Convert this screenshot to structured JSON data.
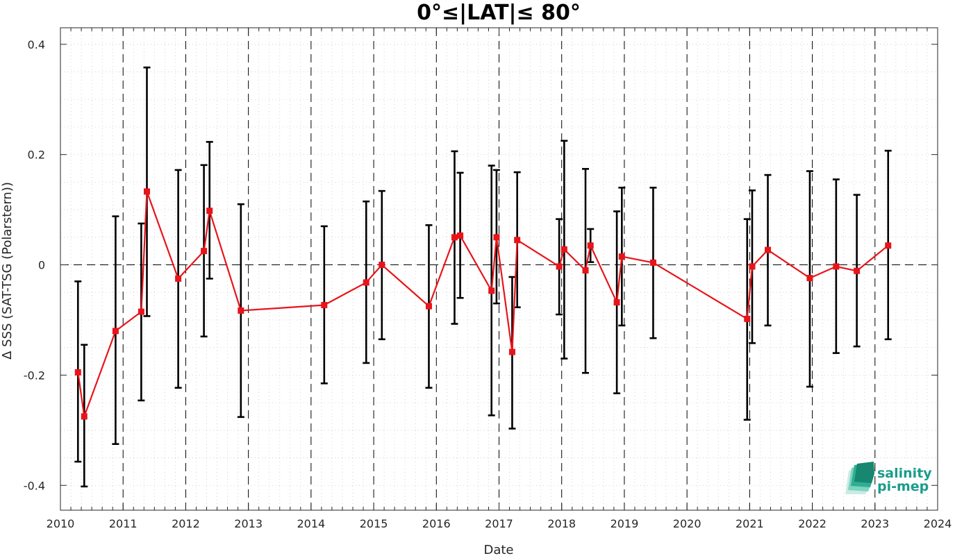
{
  "chart_data": {
    "type": "line",
    "title": "0°≤|LAT|≤ 80°",
    "xlabel": "Date",
    "ylabel": "Δ SSS (SAT-TSG (Polarstern))",
    "xlim": [
      2010,
      2024
    ],
    "ylim": [
      -0.445,
      0.43
    ],
    "x_ticks": [
      2010,
      2011,
      2012,
      2013,
      2014,
      2015,
      2016,
      2017,
      2018,
      2019,
      2020,
      2021,
      2022,
      2023,
      2024
    ],
    "x_tick_labels": [
      "2010",
      "2011",
      "2012",
      "2013",
      "2014",
      "2015",
      "2016",
      "2017",
      "2018",
      "2019",
      "2020",
      "2021",
      "2022",
      "2023",
      "2024"
    ],
    "y_ticks": [
      -0.4,
      -0.2,
      0,
      0.2,
      0.4
    ],
    "y_tick_labels": [
      "-0.4",
      "-0.2",
      "0",
      "0.2",
      "0.4"
    ],
    "grid": "dotted minor grid, dashed vertical lines at each year, dashed horizontal line at 0",
    "series": [
      {
        "color": "#e8141a",
        "x": [
          2010.28,
          2010.38,
          2010.88,
          2011.29,
          2011.38,
          2011.88,
          2012.29,
          2012.38,
          2012.88,
          2014.21,
          2014.88,
          2015.13,
          2015.88,
          2016.29,
          2016.38,
          2016.88,
          2016.96,
          2017.21,
          2017.29,
          2017.96,
          2018.04,
          2018.38,
          2018.46,
          2018.88,
          2018.96,
          2019.46,
          2020.96,
          2021.04,
          2021.29,
          2021.96,
          2022.38,
          2022.71,
          2023.21
        ],
        "y": [
          -0.195,
          -0.275,
          -0.12,
          -0.085,
          0.133,
          -0.025,
          0.025,
          0.098,
          -0.083,
          -0.073,
          -0.032,
          0.0,
          -0.075,
          0.05,
          0.053,
          -0.047,
          0.05,
          -0.158,
          0.045,
          -0.003,
          0.028,
          -0.01,
          0.035,
          -0.068,
          0.015,
          0.004,
          -0.098,
          -0.003,
          0.027,
          -0.024,
          -0.003,
          -0.011,
          0.035
        ],
        "err_low": [
          -0.357,
          -0.402,
          -0.325,
          -0.246,
          -0.093,
          -0.223,
          -0.13,
          -0.025,
          -0.276,
          -0.215,
          -0.178,
          -0.135,
          -0.223,
          -0.107,
          -0.06,
          -0.273,
          -0.07,
          -0.297,
          -0.077,
          -0.09,
          -0.17,
          -0.196,
          0.005,
          -0.233,
          -0.11,
          -0.133,
          -0.281,
          -0.142,
          -0.11,
          -0.221,
          -0.16,
          -0.148,
          -0.135
        ],
        "err_high": [
          -0.03,
          -0.145,
          0.088,
          0.075,
          0.358,
          0.172,
          0.181,
          0.223,
          0.11,
          0.07,
          0.115,
          0.134,
          0.072,
          0.206,
          0.167,
          0.18,
          0.172,
          -0.022,
          0.168,
          0.083,
          0.225,
          0.174,
          0.065,
          0.097,
          0.14,
          0.14,
          0.083,
          0.135,
          0.163,
          0.17,
          0.155,
          0.127,
          0.207
        ]
      }
    ]
  },
  "logo": {
    "line1": "salinity",
    "line2": "pi-mep"
  },
  "colors": {
    "series": "#e8141a",
    "errorbar": "#000000",
    "logo": "#1a9c8c"
  }
}
